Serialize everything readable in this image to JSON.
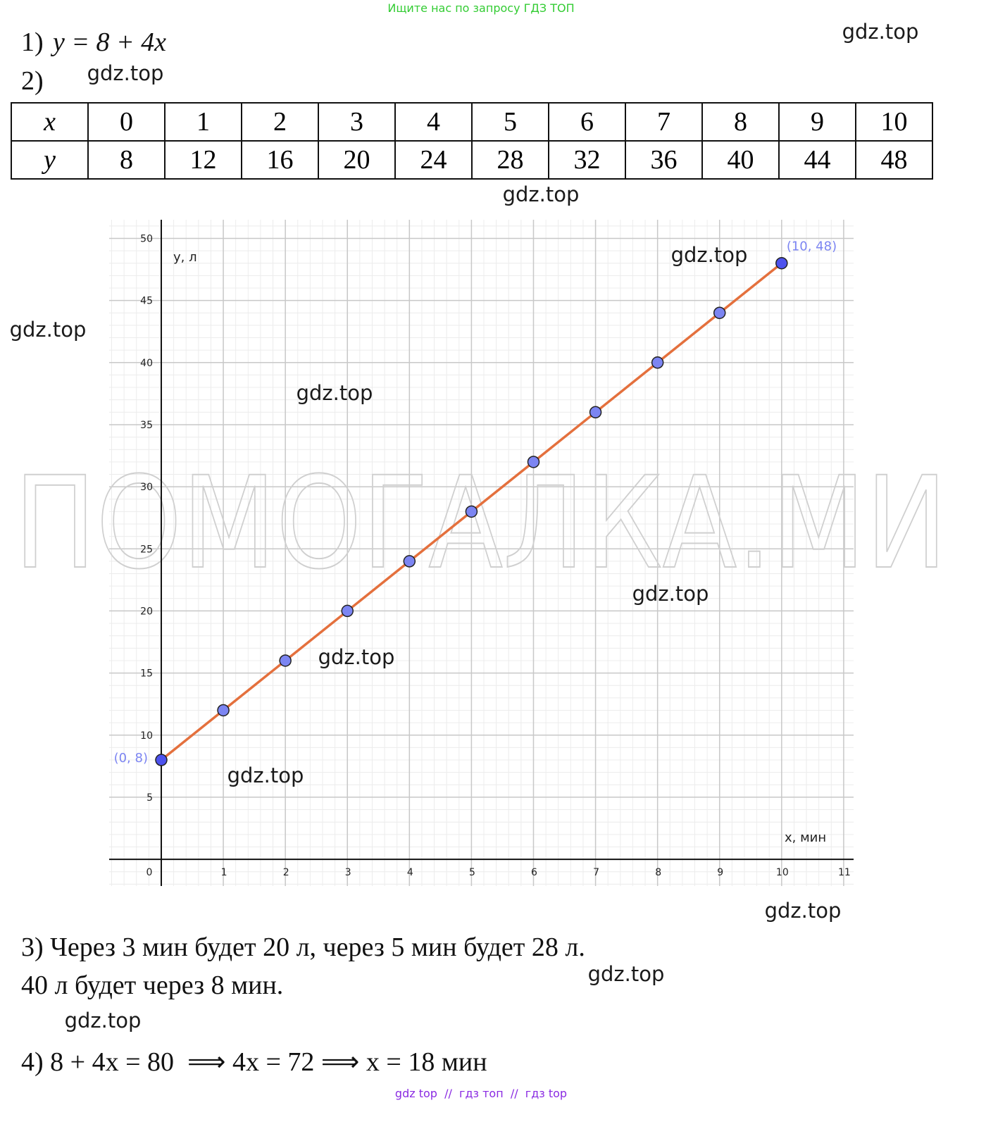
{
  "banner": "Ищите нас по запросу ГДЗ ТОП",
  "item1": {
    "label": "1)",
    "equation": "y = 8 + 4x"
  },
  "item2": {
    "label": "2)"
  },
  "table": {
    "rows": [
      [
        "x",
        0,
        1,
        2,
        3,
        4,
        5,
        6,
        7,
        8,
        9,
        10
      ],
      [
        "y",
        8,
        12,
        16,
        20,
        24,
        28,
        32,
        36,
        40,
        44,
        48
      ]
    ]
  },
  "chart_data": {
    "type": "line",
    "x": [
      0,
      1,
      2,
      3,
      4,
      5,
      6,
      7,
      8,
      9,
      10
    ],
    "values": [
      8,
      12,
      16,
      20,
      24,
      28,
      32,
      36,
      40,
      44,
      48
    ],
    "color": "#e4703d",
    "marker_color": "#7c85f2",
    "endpoint_color": "#4d52ee",
    "annotations": [
      "(0, 8)",
      "(10, 48)"
    ],
    "xlabel": "x, мин",
    "ylabel": "y, л",
    "xlim": [
      -0.84,
      11.16
    ],
    "ylim": [
      -2.15,
      51.5
    ],
    "xticks": [
      0,
      1,
      2,
      3,
      4,
      5,
      6,
      7,
      8,
      9,
      10,
      11
    ],
    "yticks": [
      5,
      10,
      15,
      20,
      25,
      30,
      35,
      40,
      45,
      50
    ],
    "grid": true
  },
  "item3": {
    "lines": [
      "3) Через 3 мин будет 20 л, через 5 мин будет 28 л.",
      "40 л будет через 8 мин."
    ]
  },
  "item4": {
    "text": "4) 8 + 4x = 80  ⟹ 4x = 72 ⟹ x = 18 мин"
  },
  "big_watermark": "ПОМОГАЛКА.МИ",
  "watermarks": [
    "gdz.top",
    "gdz.top",
    "gdz.top",
    "gdz.top",
    "gdz.top",
    "gdz.top",
    "gdz.top",
    "gdz.top",
    "gdz.top",
    "gdz.top",
    "gdz.top",
    "gdz.top"
  ],
  "footer": "gdz top  //  гдз топ  //  гдз top"
}
